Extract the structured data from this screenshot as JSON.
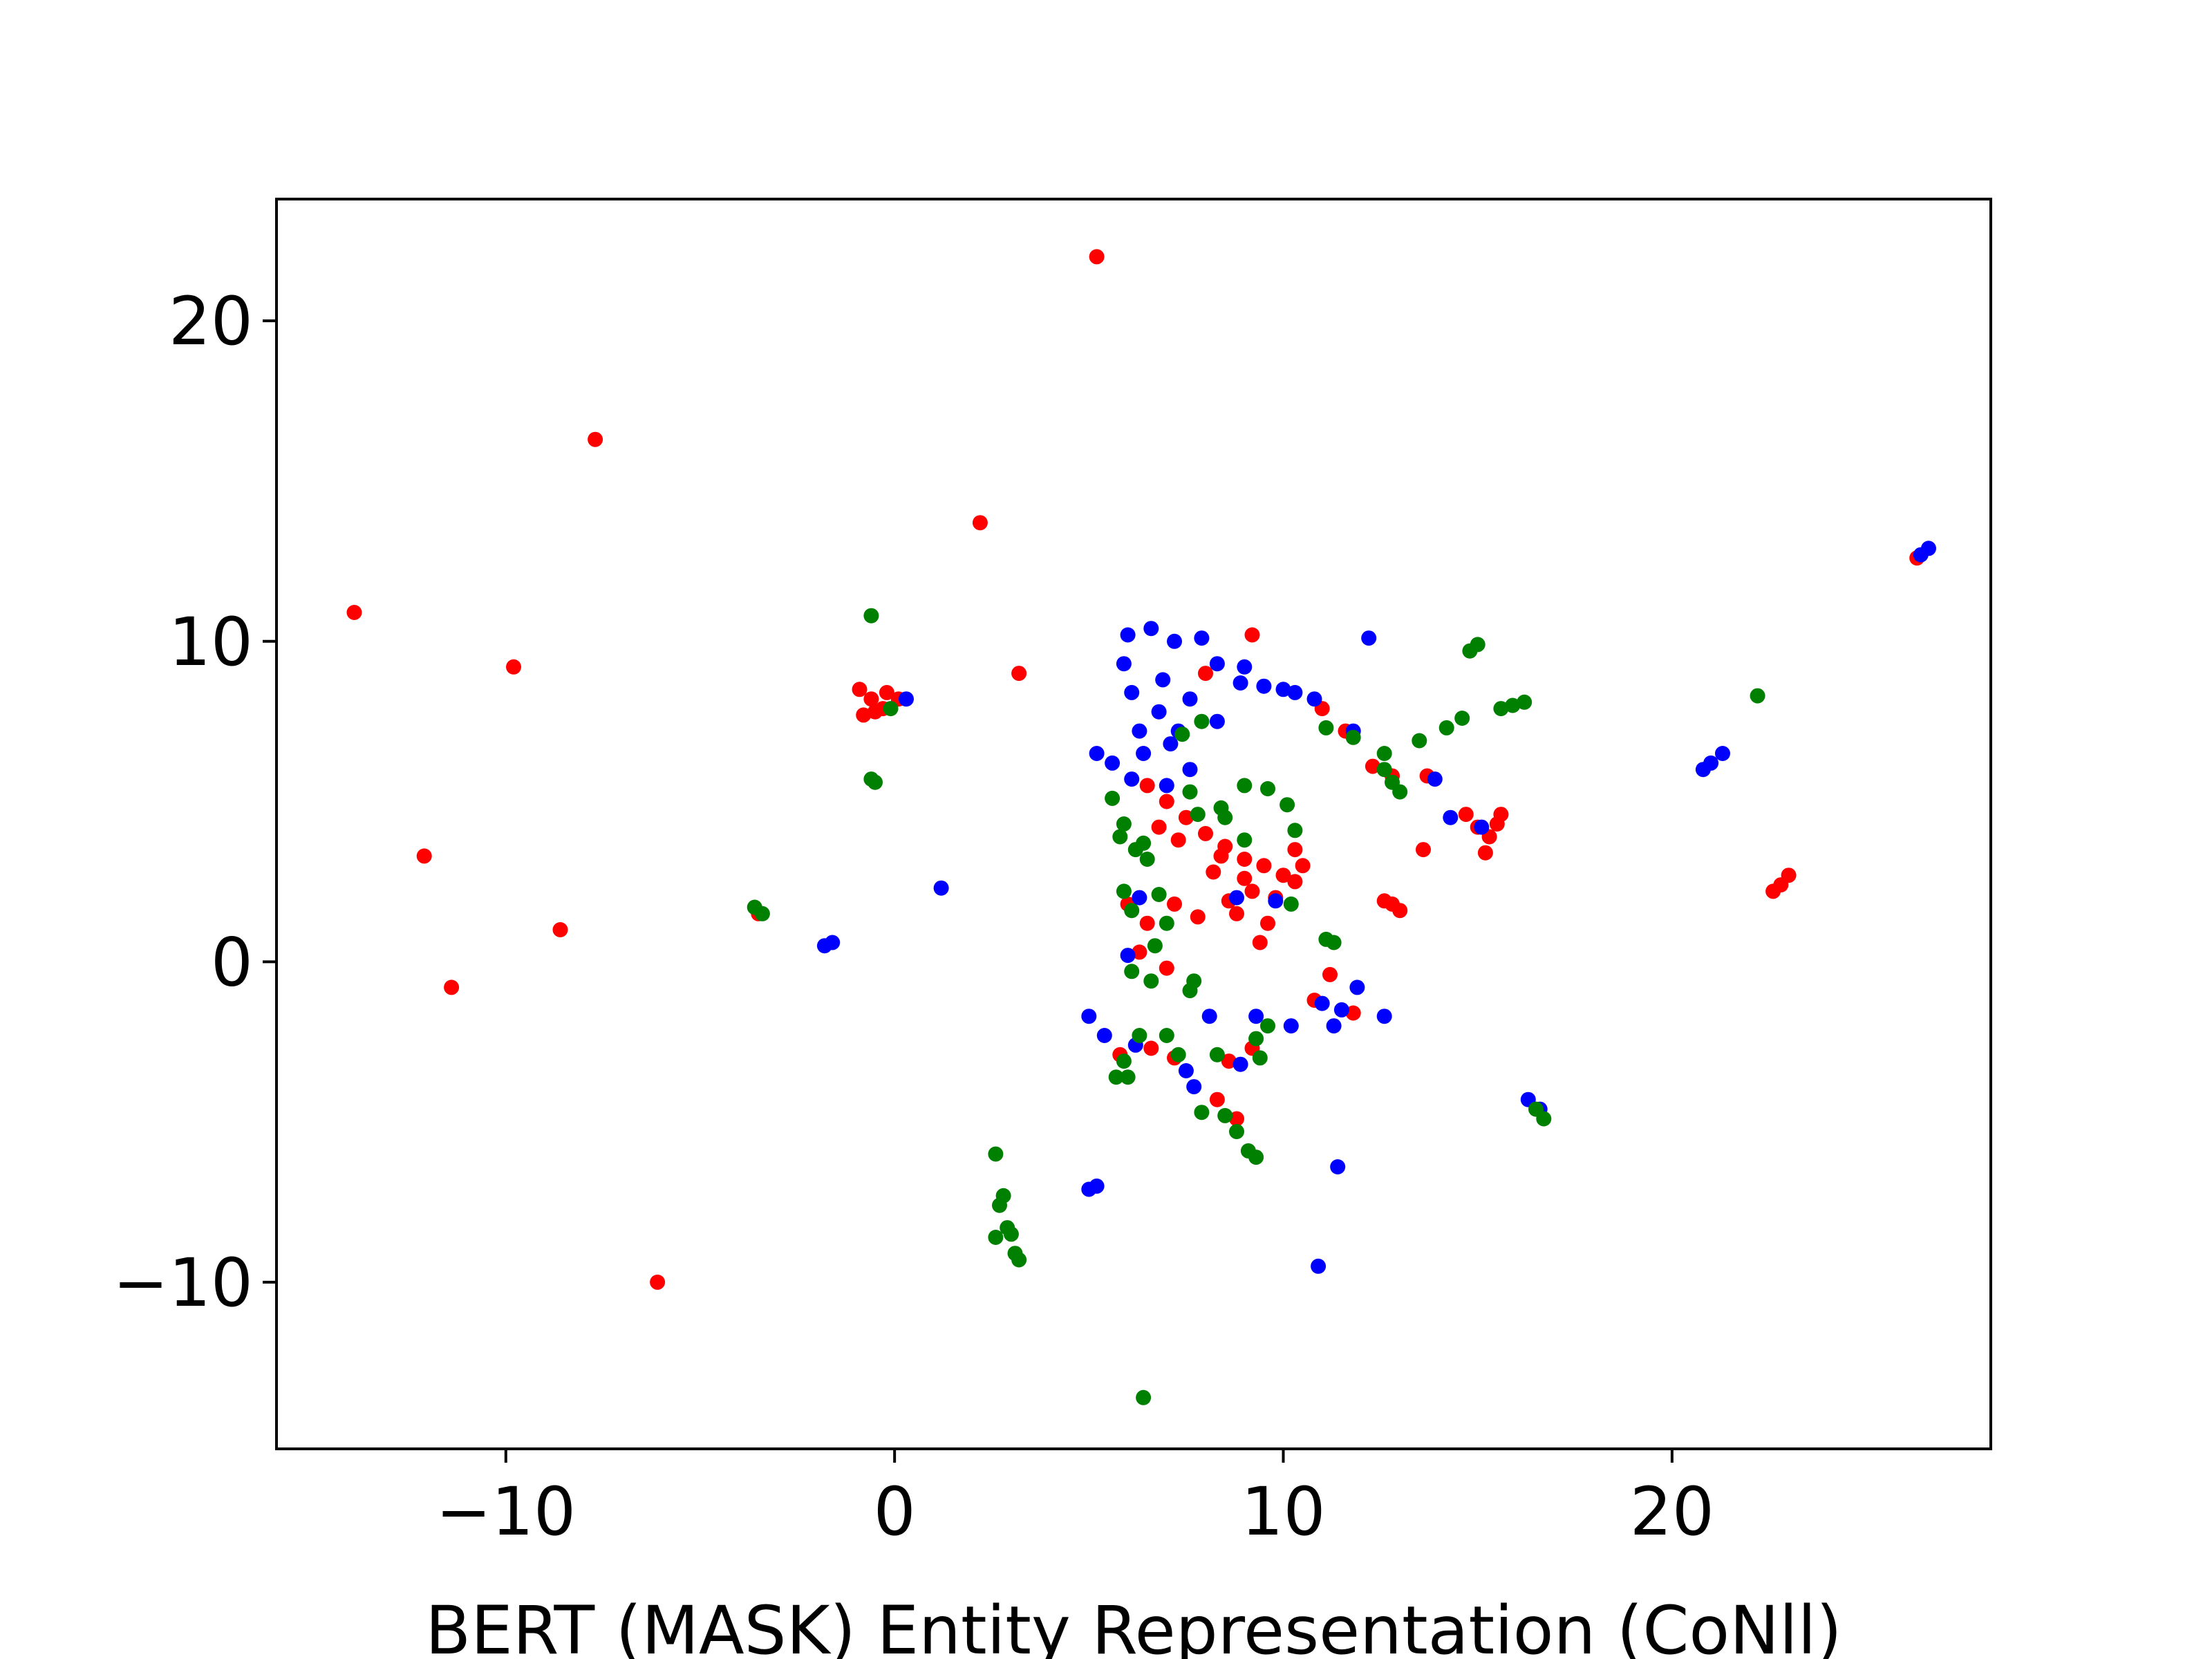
{
  "chart_data": {
    "type": "scatter",
    "title": "",
    "xlabel": "BERT (MASK) Entity Representation (CoNll)",
    "ylabel": "",
    "xlim": [
      -15.9,
      28.2
    ],
    "ylim": [
      -15.2,
      23.8
    ],
    "xticks": [
      -10,
      0,
      10,
      20
    ],
    "yticks": [
      -10,
      0,
      10,
      20
    ],
    "xtick_labels": [
      "−10",
      "0",
      "10",
      "20"
    ],
    "ytick_labels": [
      "−10",
      "0",
      "10",
      "20"
    ],
    "grid": false,
    "legend": "none",
    "series": [
      {
        "color": "#ff0000",
        "points": [
          [
            5.2,
            22.0
          ],
          [
            -7.7,
            16.3
          ],
          [
            2.2,
            13.7
          ],
          [
            -13.9,
            10.9
          ],
          [
            -9.8,
            9.2
          ],
          [
            -12.1,
            3.3
          ],
          [
            -8.6,
            1.0
          ],
          [
            -11.4,
            -0.8
          ],
          [
            -6.1,
            -10.0
          ],
          [
            -3.5,
            1.5
          ],
          [
            -0.9,
            8.5
          ],
          [
            -0.6,
            8.2
          ],
          [
            -0.3,
            7.9
          ],
          [
            -0.8,
            7.7
          ],
          [
            -0.5,
            7.8
          ],
          [
            -0.2,
            8.4
          ],
          [
            0.1,
            8.2
          ],
          [
            3.2,
            9.0
          ],
          [
            9.2,
            10.2
          ],
          [
            8.0,
            9.0
          ],
          [
            6.5,
            5.5
          ],
          [
            7.0,
            5.0
          ],
          [
            7.5,
            4.5
          ],
          [
            8.0,
            4.0
          ],
          [
            8.5,
            3.6
          ],
          [
            9.0,
            3.2
          ],
          [
            9.5,
            3.0
          ],
          [
            10.0,
            2.7
          ],
          [
            10.5,
            3.0
          ],
          [
            9.2,
            2.2
          ],
          [
            8.8,
            1.5
          ],
          [
            9.6,
            1.2
          ],
          [
            8.2,
            2.8
          ],
          [
            7.3,
            3.8
          ],
          [
            6.8,
            4.2
          ],
          [
            9.8,
            2.0
          ],
          [
            10.3,
            2.5
          ],
          [
            8.4,
            3.3
          ],
          [
            6.0,
            1.8
          ],
          [
            6.5,
            1.2
          ],
          [
            7.2,
            1.8
          ],
          [
            7.8,
            1.4
          ],
          [
            8.6,
            1.9
          ],
          [
            9.4,
            0.6
          ],
          [
            6.3,
            0.3
          ],
          [
            7.0,
            -0.2
          ],
          [
            10.3,
            3.5
          ],
          [
            9.0,
            2.6
          ],
          [
            11.0,
            7.9
          ],
          [
            11.6,
            7.2
          ],
          [
            12.3,
            6.1
          ],
          [
            12.8,
            5.8
          ],
          [
            13.7,
            5.8
          ],
          [
            12.6,
            1.9
          ],
          [
            13.0,
            1.6
          ],
          [
            12.8,
            1.8
          ],
          [
            13.6,
            3.5
          ],
          [
            14.7,
            4.6
          ],
          [
            15.0,
            4.2
          ],
          [
            15.3,
            3.9
          ],
          [
            15.6,
            4.6
          ],
          [
            15.2,
            3.4
          ],
          [
            15.5,
            4.3
          ],
          [
            22.8,
            2.4
          ],
          [
            22.6,
            2.2
          ],
          [
            23.0,
            2.7
          ],
          [
            26.3,
            12.6
          ],
          [
            11.2,
            -0.4
          ],
          [
            10.8,
            -1.2
          ],
          [
            11.8,
            -1.6
          ],
          [
            6.6,
            -2.7
          ],
          [
            5.8,
            -2.9
          ],
          [
            7.2,
            -3.0
          ],
          [
            8.6,
            -3.1
          ],
          [
            9.2,
            -2.7
          ],
          [
            8.3,
            -4.3
          ],
          [
            8.8,
            -4.9
          ]
        ]
      },
      {
        "color": "#0000ff",
        "points": [
          [
            0.3,
            8.2
          ],
          [
            1.2,
            2.3
          ],
          [
            -1.6,
            0.6
          ],
          [
            -1.8,
            0.5
          ],
          [
            6.0,
            10.2
          ],
          [
            6.6,
            10.4
          ],
          [
            7.2,
            10.0
          ],
          [
            7.9,
            10.1
          ],
          [
            8.3,
            9.3
          ],
          [
            9.0,
            9.2
          ],
          [
            10.0,
            8.5
          ],
          [
            10.8,
            8.2
          ],
          [
            5.9,
            9.3
          ],
          [
            6.1,
            8.4
          ],
          [
            6.8,
            7.8
          ],
          [
            7.3,
            7.2
          ],
          [
            6.4,
            6.5
          ],
          [
            5.6,
            6.2
          ],
          [
            5.2,
            6.5
          ],
          [
            6.1,
            5.7
          ],
          [
            7.6,
            6.0
          ],
          [
            8.3,
            7.5
          ],
          [
            7.1,
            6.8
          ],
          [
            6.9,
            8.8
          ],
          [
            7.6,
            8.2
          ],
          [
            8.9,
            8.7
          ],
          [
            9.5,
            8.6
          ],
          [
            10.3,
            8.4
          ],
          [
            6.3,
            7.2
          ],
          [
            7.0,
            5.5
          ],
          [
            12.2,
            10.1
          ],
          [
            11.8,
            7.2
          ],
          [
            14.3,
            4.5
          ],
          [
            15.1,
            4.2
          ],
          [
            13.9,
            5.7
          ],
          [
            20.8,
            6.0
          ],
          [
            21.0,
            6.2
          ],
          [
            21.3,
            6.5
          ],
          [
            26.4,
            12.7
          ],
          [
            26.6,
            12.9
          ],
          [
            5.0,
            -1.7
          ],
          [
            5.4,
            -2.3
          ],
          [
            6.2,
            -2.6
          ],
          [
            7.5,
            -3.4
          ],
          [
            7.7,
            -3.9
          ],
          [
            8.1,
            -1.7
          ],
          [
            8.9,
            -3.2
          ],
          [
            9.3,
            -1.7
          ],
          [
            10.2,
            -2.0
          ],
          [
            11.0,
            -1.3
          ],
          [
            11.5,
            -1.5
          ],
          [
            11.9,
            -0.8
          ],
          [
            12.6,
            -1.7
          ],
          [
            11.3,
            -2.0
          ],
          [
            11.4,
            -6.4
          ],
          [
            10.9,
            -9.5
          ],
          [
            5.2,
            -7.0
          ],
          [
            5.0,
            -7.1
          ],
          [
            6.3,
            2.0
          ],
          [
            6.0,
            0.2
          ],
          [
            16.3,
            -4.3
          ],
          [
            16.6,
            -4.6
          ],
          [
            8.8,
            2.0
          ],
          [
            9.8,
            1.9
          ]
        ]
      },
      {
        "color": "#008000",
        "points": [
          [
            -0.6,
            10.8
          ],
          [
            -0.5,
            5.6
          ],
          [
            -0.6,
            5.7
          ],
          [
            -3.6,
            1.7
          ],
          [
            -3.4,
            1.5
          ],
          [
            -0.1,
            7.9
          ],
          [
            5.6,
            5.1
          ],
          [
            5.9,
            4.3
          ],
          [
            6.2,
            3.5
          ],
          [
            5.8,
            3.9
          ],
          [
            6.5,
            3.2
          ],
          [
            5.9,
            2.2
          ],
          [
            6.1,
            1.6
          ],
          [
            6.8,
            2.1
          ],
          [
            7.0,
            1.2
          ],
          [
            6.7,
            0.5
          ],
          [
            6.1,
            -0.3
          ],
          [
            6.6,
            -0.6
          ],
          [
            8.5,
            4.5
          ],
          [
            9.0,
            5.5
          ],
          [
            9.6,
            5.4
          ],
          [
            10.1,
            4.9
          ],
          [
            10.3,
            4.1
          ],
          [
            7.8,
            4.6
          ],
          [
            7.6,
            5.3
          ],
          [
            9.0,
            3.8
          ],
          [
            8.4,
            4.8
          ],
          [
            7.9,
            7.5
          ],
          [
            7.4,
            7.1
          ],
          [
            11.1,
            7.3
          ],
          [
            11.8,
            7.0
          ],
          [
            12.6,
            6.5
          ],
          [
            12.8,
            5.6
          ],
          [
            13.0,
            5.3
          ],
          [
            13.5,
            6.9
          ],
          [
            14.2,
            7.3
          ],
          [
            14.6,
            7.6
          ],
          [
            15.0,
            9.9
          ],
          [
            14.8,
            9.7
          ],
          [
            15.6,
            7.9
          ],
          [
            15.9,
            8.0
          ],
          [
            16.2,
            8.1
          ],
          [
            22.2,
            8.3
          ],
          [
            11.1,
            0.7
          ],
          [
            11.3,
            0.6
          ],
          [
            7.7,
            -0.6
          ],
          [
            7.6,
            -0.9
          ],
          [
            10.2,
            1.8
          ],
          [
            6.4,
            3.7
          ],
          [
            6.3,
            -2.3
          ],
          [
            5.9,
            -3.1
          ],
          [
            5.7,
            -3.6
          ],
          [
            6.0,
            -3.6
          ],
          [
            7.0,
            -2.3
          ],
          [
            7.3,
            -2.9
          ],
          [
            8.3,
            -2.9
          ],
          [
            9.3,
            -2.4
          ],
          [
            9.6,
            -2.0
          ],
          [
            9.4,
            -3.0
          ],
          [
            7.9,
            -4.7
          ],
          [
            8.5,
            -4.8
          ],
          [
            8.8,
            -5.3
          ],
          [
            9.1,
            -5.9
          ],
          [
            9.3,
            -6.1
          ],
          [
            2.6,
            -6.0
          ],
          [
            2.8,
            -7.3
          ],
          [
            2.7,
            -7.6
          ],
          [
            2.9,
            -8.3
          ],
          [
            3.0,
            -8.5
          ],
          [
            3.1,
            -9.1
          ],
          [
            3.2,
            -9.3
          ],
          [
            2.6,
            -8.6
          ],
          [
            6.4,
            -13.6
          ],
          [
            16.5,
            -4.6
          ],
          [
            16.7,
            -4.9
          ],
          [
            12.6,
            6.0
          ]
        ]
      }
    ]
  }
}
